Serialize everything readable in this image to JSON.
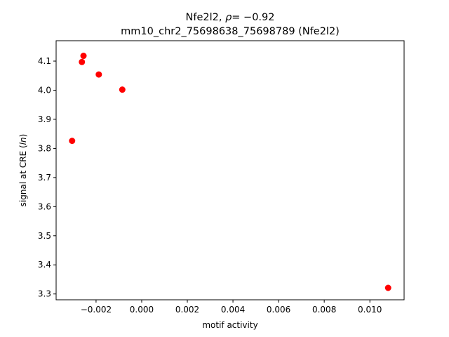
{
  "chart_data": {
    "type": "scatter",
    "title_line1_prefix": "Nfe2l2, ",
    "title_line1_rho": "ρ",
    "title_line1_suffix": "= −0.92",
    "title_line2": "mm10_chr2_75698638_75698789 (Nfe2l2)",
    "xlabel": "motif activity",
    "ylabel_prefix": "signal at CRE (",
    "ylabel_italic": "ln",
    "ylabel_suffix": ")",
    "xlim": [
      -0.00375,
      0.0115
    ],
    "ylim": [
      3.28,
      4.17
    ],
    "x_ticks": [
      -0.002,
      0.0,
      0.002,
      0.004,
      0.006,
      0.008,
      0.01
    ],
    "x_tick_labels": [
      "−0.002",
      "0.000",
      "0.002",
      "0.004",
      "0.006",
      "0.008",
      "0.010"
    ],
    "y_ticks": [
      3.3,
      3.4,
      3.5,
      3.6,
      3.7,
      3.8,
      3.9,
      4.0,
      4.1
    ],
    "y_tick_labels": [
      "3.3",
      "3.4",
      "3.5",
      "3.6",
      "3.7",
      "3.8",
      "3.9",
      "4.0",
      "4.1"
    ],
    "marker_color": "#ff0000",
    "grid": false,
    "points": [
      {
        "x": -0.00255,
        "y": 4.118
      },
      {
        "x": -0.00262,
        "y": 4.097
      },
      {
        "x": -0.00188,
        "y": 4.054
      },
      {
        "x": -0.00085,
        "y": 4.002
      },
      {
        "x": -0.00305,
        "y": 3.826
      },
      {
        "x": 0.0108,
        "y": 3.321
      }
    ]
  }
}
